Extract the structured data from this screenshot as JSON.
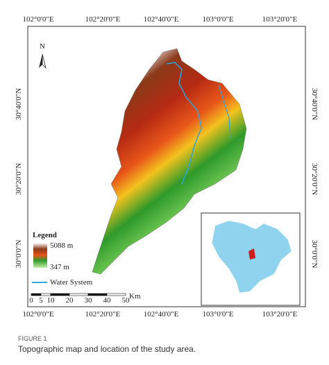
{
  "map": {
    "top_labels": [
      "102°0'0\"E",
      "102°20'0\"E",
      "102°40'0\"E",
      "103°0'0\"E",
      "103°20'0\"E"
    ],
    "bottom_labels": [
      "102°0'0\"E",
      "102°20'0\"E",
      "102°40'0\"E",
      "103°0'0\"E",
      "103°20'0\"E"
    ],
    "left_labels": [
      "30°40'0\"N",
      "30°20'0\"N",
      "30°0'0\"N"
    ],
    "right_labels": [
      "30°40'0\"N",
      "30°20'0\"N",
      "30°0'0\"N"
    ],
    "north": "N",
    "legend": {
      "title": "Legend",
      "high": "5088 m",
      "low": "347 m",
      "water": "Water System"
    },
    "scale_bar": {
      "labels": [
        "0",
        "5",
        "10",
        "20",
        "30",
        "40",
        "50"
      ],
      "unit": "Km"
    }
  },
  "caption": {
    "label": "FIGURE 1",
    "text": "Topographic map and location of the study area."
  }
}
